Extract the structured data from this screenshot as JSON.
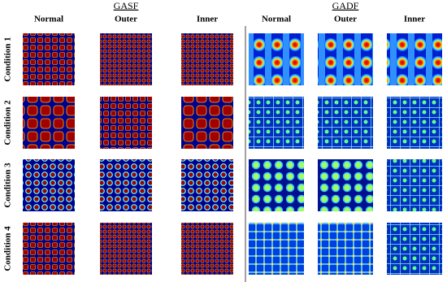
{
  "header": {
    "left_group": "GASF",
    "right_group": "GADF"
  },
  "columns": [
    "Normal",
    "Outer",
    "Inner",
    "Normal",
    "Outer",
    "Inner"
  ],
  "rows": [
    "Condition 1",
    "Condition 2",
    "Condition 3",
    "Condition 4"
  ]
}
